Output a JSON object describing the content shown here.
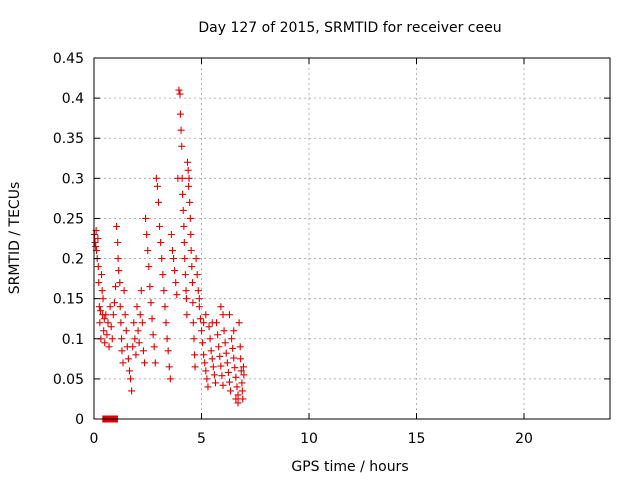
{
  "chart_data": {
    "type": "scatter",
    "title": "Day 127 of 2015, SRMTID for receiver ceeu",
    "xlabel": "GPS time / hours",
    "ylabel": "SRMTID / TECUs",
    "xlim": [
      0,
      24
    ],
    "ylim": [
      0,
      0.45
    ],
    "xticks": [
      0,
      5,
      10,
      15,
      20
    ],
    "yticks": [
      0,
      0.05,
      0.1,
      0.15,
      0.2,
      0.25,
      0.3,
      0.35,
      0.4,
      0.45
    ],
    "xtick_labels": [
      "0",
      "5",
      "10",
      "15",
      "20"
    ],
    "ytick_labels": [
      "0",
      "0.05",
      "0.1",
      "0.15",
      "0.2",
      "0.25",
      "0.3",
      "0.35",
      "0.4",
      "0.45"
    ],
    "grid": true,
    "color": "#e00000",
    "series": [
      {
        "marker": "plus",
        "points": [
          [
            0.02,
            0.23
          ],
          [
            0.05,
            0.22
          ],
          [
            0.08,
            0.215
          ],
          [
            0.1,
            0.235
          ],
          [
            0.12,
            0.21
          ],
          [
            0.15,
            0.2
          ],
          [
            0.18,
            0.225
          ],
          [
            0.2,
            0.19
          ],
          [
            0.22,
            0.17
          ],
          [
            0.25,
            0.14
          ],
          [
            0.27,
            0.12
          ],
          [
            0.3,
            0.135
          ],
          [
            0.32,
            0.1
          ],
          [
            0.35,
            0.18
          ],
          [
            0.38,
            0.16
          ],
          [
            0.4,
            0.13
          ],
          [
            0.42,
            0.15
          ],
          [
            0.45,
            0.11
          ],
          [
            0.48,
            0.125
          ],
          [
            0.5,
            0.095
          ],
          [
            0.55,
            0.13
          ],
          [
            0.6,
            0.105
          ],
          [
            0.65,
            0.12
          ],
          [
            0.7,
            0.09
          ],
          [
            0.75,
            0.14
          ],
          [
            0.8,
            0.115
          ],
          [
            0.85,
            0.1
          ],
          [
            0.9,
            0.13
          ],
          [
            0.95,
            0.145
          ],
          [
            1.0,
            0.165
          ],
          [
            1.05,
            0.24
          ],
          [
            1.1,
            0.22
          ],
          [
            1.12,
            0.2
          ],
          [
            1.15,
            0.185
          ],
          [
            1.2,
            0.17
          ],
          [
            1.22,
            0.14
          ],
          [
            1.25,
            0.12
          ],
          [
            1.28,
            0.1
          ],
          [
            1.3,
            0.085
          ],
          [
            1.35,
            0.07
          ],
          [
            1.4,
            0.16
          ],
          [
            1.45,
            0.13
          ],
          [
            1.5,
            0.11
          ],
          [
            1.55,
            0.09
          ],
          [
            1.6,
            0.075
          ],
          [
            1.65,
            0.06
          ],
          [
            1.7,
            0.05
          ],
          [
            1.75,
            0.035
          ],
          [
            1.8,
            0.09
          ],
          [
            1.85,
            0.12
          ],
          [
            1.9,
            0.1
          ],
          [
            1.95,
            0.08
          ],
          [
            2.0,
            0.14
          ],
          [
            2.05,
            0.11
          ],
          [
            2.1,
            0.095
          ],
          [
            2.15,
            0.13
          ],
          [
            2.2,
            0.16
          ],
          [
            2.25,
            0.12
          ],
          [
            2.3,
            0.085
          ],
          [
            2.35,
            0.07
          ],
          [
            2.4,
            0.25
          ],
          [
            2.45,
            0.23
          ],
          [
            2.5,
            0.21
          ],
          [
            2.55,
            0.19
          ],
          [
            2.6,
            0.165
          ],
          [
            2.65,
            0.145
          ],
          [
            2.7,
            0.125
          ],
          [
            2.75,
            0.105
          ],
          [
            2.8,
            0.09
          ],
          [
            2.85,
            0.07
          ],
          [
            2.9,
            0.3
          ],
          [
            2.95,
            0.29
          ],
          [
            3.0,
            0.27
          ],
          [
            3.05,
            0.24
          ],
          [
            3.1,
            0.22
          ],
          [
            3.15,
            0.2
          ],
          [
            3.2,
            0.18
          ],
          [
            3.25,
            0.16
          ],
          [
            3.3,
            0.14
          ],
          [
            3.35,
            0.12
          ],
          [
            3.4,
            0.1
          ],
          [
            3.45,
            0.085
          ],
          [
            3.5,
            0.065
          ],
          [
            3.55,
            0.05
          ],
          [
            3.6,
            0.23
          ],
          [
            3.65,
            0.21
          ],
          [
            3.7,
            0.2
          ],
          [
            3.75,
            0.185
          ],
          [
            3.8,
            0.17
          ],
          [
            3.85,
            0.155
          ],
          [
            3.9,
            0.3
          ],
          [
            3.95,
            0.41
          ],
          [
            4.0,
            0.405
          ],
          [
            4.02,
            0.38
          ],
          [
            4.05,
            0.36
          ],
          [
            4.08,
            0.34
          ],
          [
            4.1,
            0.3
          ],
          [
            4.12,
            0.28
          ],
          [
            4.15,
            0.26
          ],
          [
            4.18,
            0.24
          ],
          [
            4.2,
            0.22
          ],
          [
            4.22,
            0.2
          ],
          [
            4.25,
            0.18
          ],
          [
            4.28,
            0.16
          ],
          [
            4.3,
            0.15
          ],
          [
            4.32,
            0.13
          ],
          [
            4.35,
            0.32
          ],
          [
            4.38,
            0.31
          ],
          [
            4.4,
            0.29
          ],
          [
            4.42,
            0.3
          ],
          [
            4.45,
            0.27
          ],
          [
            4.48,
            0.25
          ],
          [
            4.5,
            0.23
          ],
          [
            4.52,
            0.21
          ],
          [
            4.55,
            0.19
          ],
          [
            4.58,
            0.17
          ],
          [
            4.6,
            0.145
          ],
          [
            4.62,
            0.12
          ],
          [
            4.65,
            0.1
          ],
          [
            4.68,
            0.08
          ],
          [
            4.7,
            0.065
          ],
          [
            4.75,
            0.2
          ],
          [
            4.8,
            0.18
          ],
          [
            4.85,
            0.16
          ],
          [
            4.9,
            0.14
          ],
          [
            4.95,
            0.125
          ],
          [
            5.0,
            0.11
          ],
          [
            5.05,
            0.095
          ],
          [
            5.1,
            0.08
          ],
          [
            5.15,
            0.07
          ],
          [
            5.2,
            0.06
          ],
          [
            5.25,
            0.05
          ],
          [
            5.3,
            0.04
          ],
          [
            5.35,
            0.115
          ],
          [
            5.4,
            0.1
          ],
          [
            5.45,
            0.085
          ],
          [
            5.5,
            0.075
          ],
          [
            5.55,
            0.065
          ],
          [
            5.6,
            0.055
          ],
          [
            5.65,
            0.045
          ],
          [
            5.7,
            0.12
          ],
          [
            5.75,
            0.105
          ],
          [
            5.8,
            0.09
          ],
          [
            5.85,
            0.078
          ],
          [
            5.9,
            0.066
          ],
          [
            5.95,
            0.054
          ],
          [
            6.0,
            0.042
          ],
          [
            6.05,
            0.11
          ],
          [
            6.1,
            0.095
          ],
          [
            6.15,
            0.082
          ],
          [
            6.2,
            0.07
          ],
          [
            6.25,
            0.058
          ],
          [
            6.3,
            0.046
          ],
          [
            6.35,
            0.035
          ],
          [
            6.4,
            0.1
          ],
          [
            6.45,
            0.088
          ],
          [
            6.5,
            0.076
          ],
          [
            6.55,
            0.064
          ],
          [
            6.6,
            0.052
          ],
          [
            6.65,
            0.04
          ],
          [
            6.7,
            0.03
          ],
          [
            6.75,
            0.12
          ],
          [
            6.8,
            0.09
          ],
          [
            6.82,
            0.075
          ],
          [
            6.85,
            0.06
          ],
          [
            6.88,
            0.045
          ],
          [
            6.9,
            0.035
          ],
          [
            6.92,
            0.025
          ],
          [
            6.95,
            0.065
          ],
          [
            6.97,
            0.055
          ],
          [
            6.5,
            0.11
          ],
          [
            6.6,
            0.025
          ],
          [
            6.7,
            0.02
          ],
          [
            6.3,
            0.13
          ],
          [
            6.0,
            0.13
          ],
          [
            5.9,
            0.14
          ],
          [
            5.5,
            0.12
          ],
          [
            5.2,
            0.13
          ],
          [
            5.1,
            0.12
          ],
          [
            4.9,
            0.15
          ]
        ]
      },
      {
        "marker": "square",
        "points": [
          [
            0.55,
            0.0
          ],
          [
            0.8,
            0.0
          ],
          [
            0.95,
            0.0
          ]
        ]
      }
    ]
  }
}
